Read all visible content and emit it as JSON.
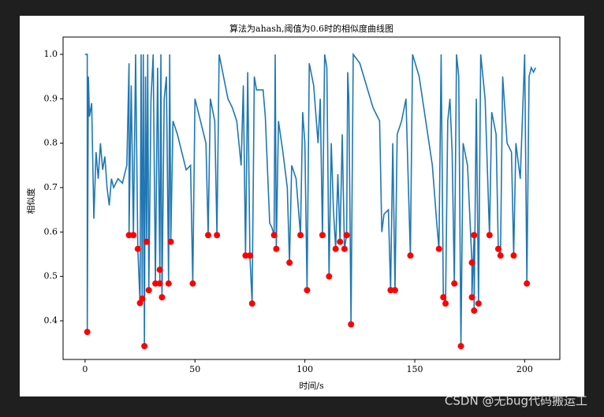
{
  "chart_data": {
    "type": "line",
    "title": "算法为ahash,阈值为0.6时的相似度曲线图",
    "x_label": "时间/s",
    "y_label": "相似度",
    "watermark": "CSDN @无bug代码搬运工",
    "xlim": [
      -10,
      216
    ],
    "xticks": [
      0,
      50,
      100,
      150,
      200
    ],
    "ylim": [
      0.313,
      1.039
    ],
    "yticks": [
      0.4,
      0.5,
      0.6,
      0.7,
      0.8,
      0.9,
      {
        "value": 1,
        "label": "1.0"
      }
    ],
    "series": [
      {
        "type": "line",
        "color": "#1f77b4",
        "x": [
          0,
          1,
          1,
          1.5,
          2,
          3,
          4,
          5,
          6,
          7,
          8,
          9,
          10,
          11,
          12,
          13,
          15,
          17,
          19,
          20,
          20,
          21,
          22,
          23,
          24,
          25,
          25.5,
          26,
          26.5,
          27,
          27.5,
          28,
          28.5,
          29,
          30,
          31,
          32,
          33,
          34,
          34,
          34.5,
          35,
          36,
          37,
          38,
          38.5,
          39,
          40,
          42,
          44,
          46,
          48,
          49,
          50,
          52,
          54,
          55,
          56,
          57,
          59,
          60,
          61,
          63,
          65,
          67,
          69,
          71,
          72,
          73,
          74,
          75,
          76,
          77,
          78,
          81,
          82,
          84,
          85,
          86,
          86.5,
          87,
          88,
          90,
          92,
          93,
          94,
          96,
          98,
          99,
          100,
          101,
          102,
          104,
          106,
          107,
          108,
          109,
          110,
          111,
          112,
          113,
          114,
          115,
          116,
          117,
          118,
          119,
          119.5,
          120,
          121,
          122,
          125,
          128,
          131,
          134,
          135,
          136,
          138,
          139,
          140,
          141,
          142,
          144,
          146,
          147,
          148,
          149,
          152,
          155,
          158,
          160,
          161,
          162,
          163,
          164,
          165,
          166,
          167,
          168,
          169,
          170,
          171,
          172,
          174,
          176,
          176,
          177,
          177,
          178,
          179,
          180,
          182,
          184,
          185,
          187,
          188,
          189,
          190,
          192,
          194,
          195,
          196,
          198,
          200,
          201,
          202,
          203,
          204,
          205
        ],
        "values": [
          1.0,
          1.0,
          0.375,
          0.95,
          0.86,
          0.89,
          0.63,
          0.78,
          0.72,
          0.8,
          0.74,
          0.77,
          0.7,
          0.66,
          0.72,
          0.7,
          0.72,
          0.71,
          0.75,
          0.98,
          0.593,
          0.93,
          0.593,
          1.0,
          0.562,
          0.44,
          1.0,
          0.45,
          1.0,
          0.343,
          0.95,
          0.578,
          1.0,
          0.469,
          0.9,
          1.0,
          0.484,
          0.97,
          0.515,
          0.484,
          1.0,
          0.453,
          0.9,
          0.95,
          0.484,
          1.0,
          0.578,
          0.85,
          0.82,
          0.78,
          0.74,
          0.75,
          0.484,
          0.9,
          0.86,
          0.82,
          0.8,
          0.593,
          0.9,
          0.85,
          0.593,
          1.0,
          0.95,
          0.9,
          0.88,
          0.85,
          0.75,
          0.93,
          0.547,
          0.96,
          0.547,
          0.439,
          0.95,
          0.92,
          0.92,
          0.86,
          0.62,
          0.61,
          0.593,
          1.0,
          0.562,
          0.85,
          0.78,
          0.7,
          0.531,
          0.75,
          0.72,
          0.593,
          0.87,
          0.8,
          0.469,
          0.98,
          0.93,
          0.8,
          0.9,
          0.593,
          1.0,
          0.97,
          0.5,
          0.8,
          0.65,
          0.562,
          0.73,
          0.578,
          0.82,
          0.562,
          0.593,
          0.96,
          0.9,
          0.392,
          1.0,
          0.98,
          0.93,
          0.88,
          0.85,
          0.6,
          0.64,
          0.65,
          0.469,
          0.8,
          0.469,
          0.82,
          0.85,
          0.9,
          0.72,
          0.547,
          1.0,
          0.95,
          0.85,
          0.75,
          0.62,
          0.562,
          1.0,
          0.453,
          0.439,
          0.85,
          0.9,
          0.78,
          0.484,
          1.0,
          0.95,
          0.343,
          0.8,
          0.75,
          0.531,
          0.453,
          0.593,
          0.423,
          0.9,
          0.439,
          1.0,
          0.9,
          0.593,
          0.87,
          0.82,
          0.562,
          0.547,
          0.95,
          0.8,
          0.78,
          0.547,
          0.8,
          0.72,
          1.0,
          0.484,
          0.95,
          0.97,
          0.96,
          0.97
        ]
      },
      {
        "type": "scatter",
        "color": "#ff0000",
        "x": [
          1,
          20,
          22,
          24,
          25,
          26,
          27,
          28,
          29,
          32,
          34,
          34,
          35,
          38,
          39,
          49,
          56,
          60,
          73,
          75,
          76,
          86,
          87,
          93,
          98,
          101,
          108,
          111,
          114,
          116,
          118,
          119,
          121,
          139,
          141,
          148,
          161,
          163,
          164,
          168,
          171,
          176,
          177,
          176,
          177,
          179,
          184,
          188,
          189,
          195,
          201
        ],
        "values": [
          0.375,
          0.593,
          0.593,
          0.562,
          0.44,
          0.45,
          0.343,
          0.578,
          0.469,
          0.484,
          0.515,
          0.484,
          0.453,
          0.484,
          0.578,
          0.484,
          0.593,
          0.593,
          0.547,
          0.547,
          0.439,
          0.593,
          0.562,
          0.531,
          0.593,
          0.469,
          0.593,
          0.5,
          0.562,
          0.578,
          0.562,
          0.593,
          0.392,
          0.469,
          0.469,
          0.547,
          0.562,
          0.453,
          0.439,
          0.484,
          0.343,
          0.531,
          0.593,
          0.453,
          0.423,
          0.439,
          0.593,
          0.562,
          0.547,
          0.547,
          0.484
        ]
      }
    ]
  }
}
